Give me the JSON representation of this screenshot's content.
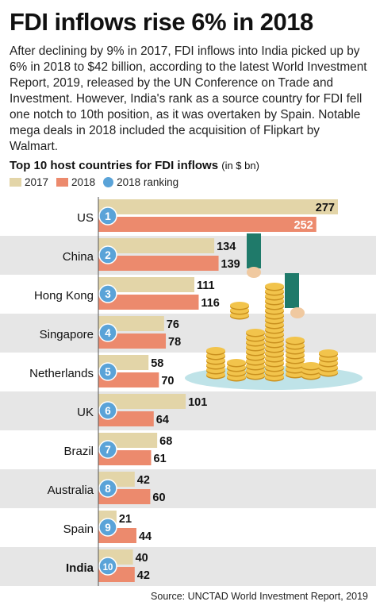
{
  "headline": "FDI inflows rise 6% in 2018",
  "intro": "After declining by 9% in 2017, FDI inflows into India picked up by 6% in 2018 to $42 billion, according to the latest World Investment Report, 2019, released by the UN Conference on Trade and Investment. However, India's rank as a source country for FDI fell one notch to 10th position, as it was overtaken by Spain. Notable mega deals in 2018 included the acquisition of Flipkart by Walmart.",
  "chart_title": "Top 10 host countries for FDI inflows",
  "chart_unit": "(in $ bn)",
  "legend": {
    "y2017": "2017",
    "y2018": "2018",
    "ranking": "2018 ranking"
  },
  "colors": {
    "y2017": "#e3d5a8",
    "y2018": "#ec8a6d",
    "ranking": "#5aa3d8",
    "band": "#e6e6e6",
    "axis": "#555555"
  },
  "source": "Source: UNCTAD World Investment Report, 2019",
  "chart_data": {
    "type": "bar",
    "orientation": "horizontal",
    "title": "Top 10 host countries for FDI inflows",
    "unit": "(in $ bn)",
    "categories": [
      "US",
      "China",
      "Hong Kong",
      "Singapore",
      "Netherlands",
      "UK",
      "Brazil",
      "Australia",
      "Spain",
      "India"
    ],
    "ranks": [
      "1",
      "2",
      "3",
      "4",
      "5",
      "6",
      "7",
      "8",
      "9",
      "10"
    ],
    "highlight": "India",
    "series": [
      {
        "name": "2017",
        "values": [
          277,
          134,
          111,
          76,
          58,
          101,
          68,
          42,
          21,
          40
        ]
      },
      {
        "name": "2018",
        "values": [
          252,
          139,
          116,
          78,
          70,
          64,
          61,
          60,
          44,
          42
        ]
      }
    ],
    "xlim": [
      0,
      277
    ],
    "legend_position": "top-left"
  }
}
